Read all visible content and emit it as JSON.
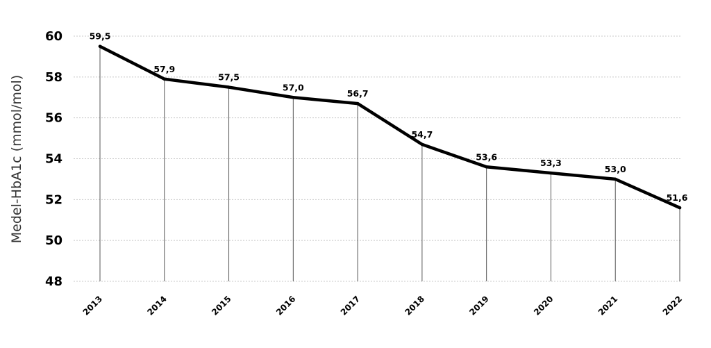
{
  "chart_data": {
    "type": "line",
    "title": "",
    "xlabel": "",
    "ylabel": "Medel-HbA1c (mmol/mol)",
    "categories": [
      "2013",
      "2014",
      "2015",
      "2016",
      "2017",
      "2018",
      "2019",
      "2020",
      "2021",
      "2022"
    ],
    "values": [
      59.5,
      57.9,
      57.5,
      57.0,
      56.7,
      54.7,
      53.6,
      53.3,
      53.0,
      51.6
    ],
    "data_labels": [
      "59,5",
      "57,9",
      "57,5",
      "57,0",
      "56,7",
      "54,7",
      "53,6",
      "53,3",
      "53,0",
      "51,6"
    ],
    "ylim": [
      48,
      60
    ],
    "yticks": [
      48,
      50,
      52,
      54,
      56,
      58,
      60
    ],
    "grid": true,
    "legend": "none",
    "line_color": "#000000"
  }
}
